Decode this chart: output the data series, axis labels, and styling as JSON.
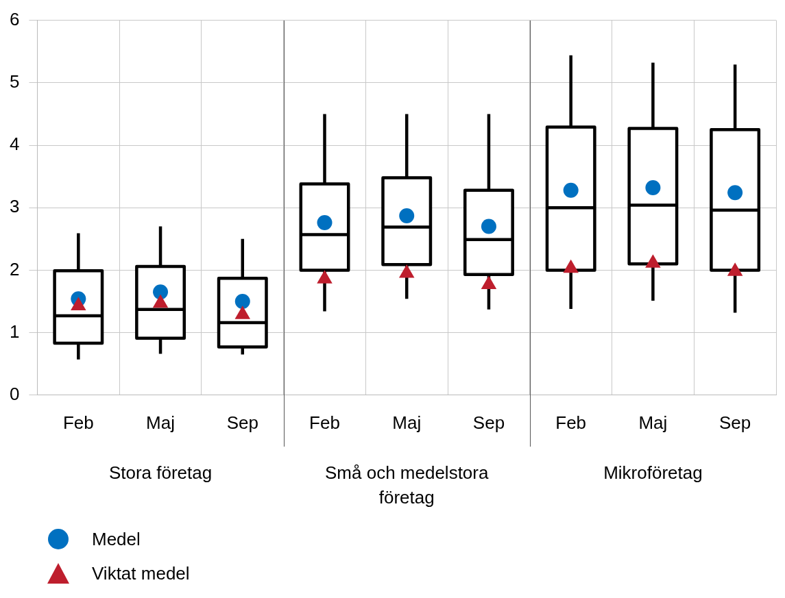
{
  "chart_data": {
    "type": "box",
    "categories": [
      "Feb",
      "Maj",
      "Sep",
      "Feb",
      "Maj",
      "Sep",
      "Feb",
      "Maj",
      "Sep"
    ],
    "annotations": [
      "Stora företag",
      "Små och medelstora företag",
      "Mikroföretag"
    ],
    "boxes": [
      {
        "low": 0.57,
        "q1": 0.83,
        "median": 1.27,
        "q3": 1.99,
        "high": 2.59
      },
      {
        "low": 0.66,
        "q1": 0.91,
        "median": 1.37,
        "q3": 2.06,
        "high": 2.7
      },
      {
        "low": 0.65,
        "q1": 0.77,
        "median": 1.16,
        "q3": 1.87,
        "high": 2.5
      },
      {
        "low": 1.34,
        "q1": 2.0,
        "median": 2.57,
        "q3": 3.38,
        "high": 4.5
      },
      {
        "low": 1.54,
        "q1": 2.09,
        "median": 2.69,
        "q3": 3.48,
        "high": 4.5
      },
      {
        "low": 1.37,
        "q1": 1.93,
        "median": 2.49,
        "q3": 3.28,
        "high": 4.5
      },
      {
        "low": 1.38,
        "q1": 2.0,
        "median": 3.0,
        "q3": 4.29,
        "high": 5.44
      },
      {
        "low": 1.51,
        "q1": 2.1,
        "median": 3.04,
        "q3": 4.27,
        "high": 5.32
      },
      {
        "low": 1.32,
        "q1": 2.0,
        "median": 2.96,
        "q3": 4.25,
        "high": 5.29
      }
    ],
    "series": [
      {
        "name": "Medel",
        "type": "scatter",
        "marker": "circle",
        "color": "#0070c0",
        "values": [
          1.54,
          1.65,
          1.5,
          2.76,
          2.87,
          2.7,
          3.28,
          3.32,
          3.24
        ]
      },
      {
        "name": "Viktat medel",
        "type": "scatter",
        "marker": "triangle",
        "color": "#be1e2d",
        "values": [
          1.43,
          1.47,
          1.29,
          1.86,
          1.95,
          1.77,
          2.03,
          2.11,
          1.98
        ]
      }
    ],
    "ylim": [
      0,
      6
    ],
    "yticks": [
      0,
      1,
      2,
      3,
      4,
      5,
      6
    ],
    "grid": true,
    "legend": "bottom left"
  }
}
